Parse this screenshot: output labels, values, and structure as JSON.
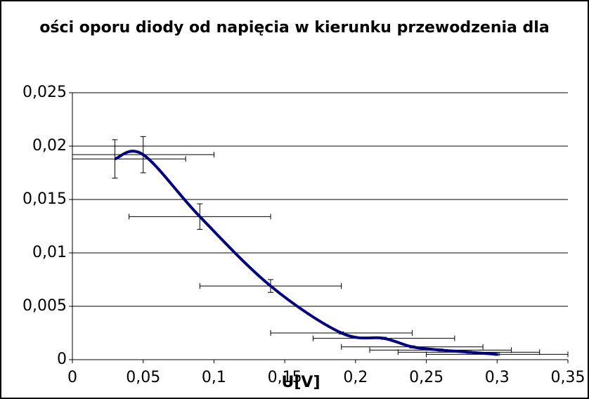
{
  "chart_data": {
    "type": "line",
    "title": "ości oporu diody od napięcia w kierunku przewodzenia dla",
    "x_label": "U[V]",
    "x": [
      0.03,
      0.05,
      0.09,
      0.14,
      0.19,
      0.22,
      0.24,
      0.26,
      0.28,
      0.3
    ],
    "series": [
      {
        "color": "#000080",
        "values": [
          0.0188,
          0.0192,
          0.0134,
          0.0069,
          0.0025,
          0.002,
          0.0012,
          0.0009,
          0.0007,
          0.0005
        ],
        "y_errors": [
          0.0018,
          0.0017,
          0.0012,
          0.0006,
          0.0001,
          0.0001,
          0.0001,
          0.0001,
          0.0001,
          0.0001
        ],
        "x_errors": [
          0.05,
          0.05,
          0.05,
          0.05,
          0.05,
          0.05,
          0.05,
          0.05,
          0.05,
          0.05
        ]
      }
    ],
    "smooth": true,
    "xlim": [
      0,
      0.35
    ],
    "xticks": [
      0,
      {
        "value": 0.05,
        "label": "0,05"
      },
      {
        "value": 0.1,
        "label": "0,1"
      },
      {
        "value": 0.15,
        "label": "0,15"
      },
      {
        "value": 0.2,
        "label": "0,2"
      },
      {
        "value": 0.25,
        "label": "0,25"
      },
      {
        "value": 0.3,
        "label": "0,3"
      },
      {
        "value": 0.35,
        "label": "0,35"
      }
    ],
    "ylim": [
      0,
      0.025
    ],
    "yticks": [
      0,
      {
        "value": 0.005,
        "label": "0,005"
      },
      {
        "value": 0.01,
        "label": "0,01"
      },
      {
        "value": 0.015,
        "label": "0,015"
      },
      {
        "value": 0.02,
        "label": "0,02"
      },
      {
        "value": 0.025,
        "label": "0,025"
      }
    ],
    "grid": true
  }
}
